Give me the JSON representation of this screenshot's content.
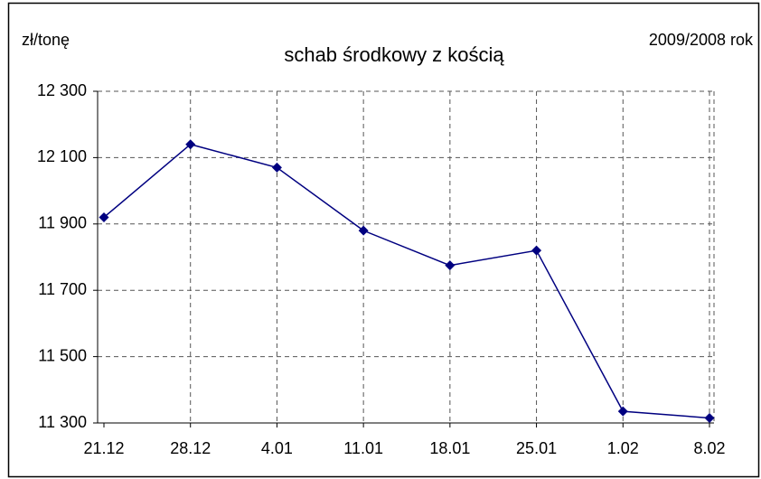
{
  "chart_data": {
    "type": "line",
    "title": "schab środkowy z kością",
    "y_label": "zł/tonę",
    "period_label": "2009/2008 rok",
    "categories": [
      "21.12",
      "28.12",
      "4.01",
      "11.01",
      "18.01",
      "25.01",
      "1.02",
      "8.02"
    ],
    "series": [
      {
        "color": "#000080",
        "values": [
          11920,
          12140,
          12070,
          11880,
          11775,
          11820,
          11335,
          11315
        ]
      }
    ],
    "ylim": [
      11300,
      12300
    ],
    "yticks": [
      {
        "value": 11300,
        "label": "11 300"
      },
      {
        "value": 11500,
        "label": "11 500"
      },
      {
        "value": 11700,
        "label": "11 700"
      },
      {
        "value": 11900,
        "label": "11 900"
      },
      {
        "value": 12100,
        "label": "12 100"
      },
      {
        "value": 12300,
        "label": "12 300"
      }
    ],
    "grid": true
  }
}
